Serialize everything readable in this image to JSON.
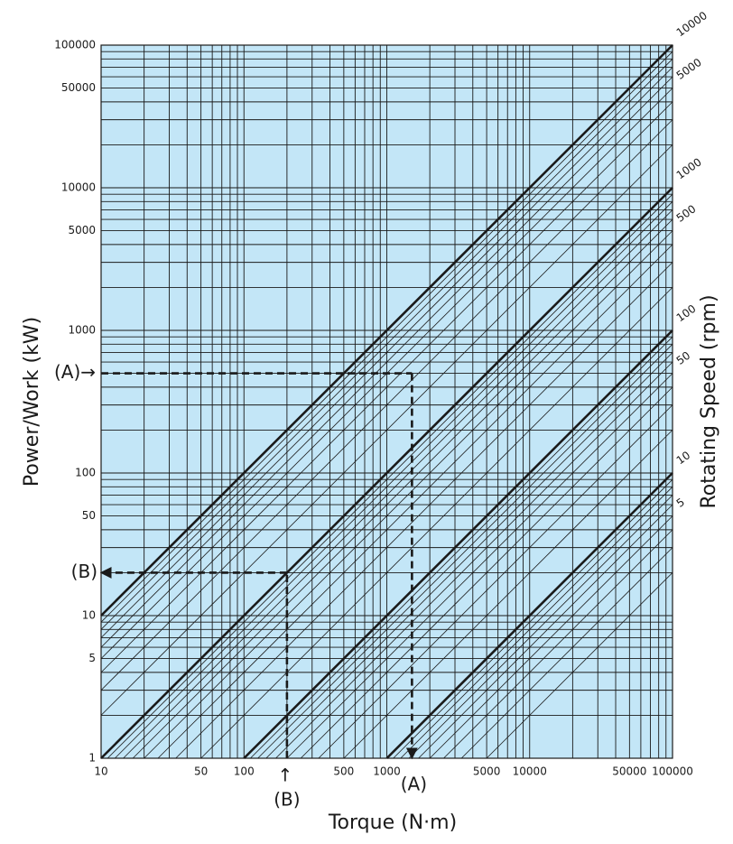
{
  "chart_data": {
    "type": "nomograph",
    "x_label": "Torque (N·m)",
    "y_label": "Power/Work (kW)",
    "y2_label": "Rotating Speed (rpm)",
    "log_x": true,
    "log_y": true,
    "xlim": [
      10,
      100000
    ],
    "ylim": [
      1,
      100000
    ],
    "xticks": [
      10,
      50,
      100,
      500,
      1000,
      5000,
      10000,
      50000,
      100000
    ],
    "yticks": [
      1,
      5,
      10,
      50,
      100,
      1000,
      5000,
      10000,
      50000,
      100000
    ],
    "xgrid": [
      10,
      20,
      30,
      40,
      50,
      60,
      70,
      80,
      90,
      100,
      200,
      300,
      400,
      500,
      600,
      700,
      800,
      900,
      1000,
      2000,
      3000,
      4000,
      5000,
      6000,
      7000,
      8000,
      9000,
      10000,
      20000,
      30000,
      40000,
      50000,
      60000,
      70000,
      80000,
      90000,
      100000
    ],
    "ygrid": [
      1,
      2,
      3,
      4,
      5,
      6,
      7,
      8,
      9,
      10,
      20,
      30,
      40,
      50,
      60,
      70,
      80,
      90,
      100,
      200,
      300,
      400,
      500,
      600,
      700,
      800,
      900,
      1000,
      2000,
      3000,
      4000,
      5000,
      6000,
      7000,
      8000,
      9000,
      10000,
      20000,
      30000,
      40000,
      50000,
      60000,
      70000,
      80000,
      90000,
      100000
    ],
    "background": "#c3e6f7",
    "color": "#1a1a1a",
    "series": [
      {
        "name": null,
        "x": [
          5000,
          100000
        ],
        "values": [
          1,
          20
        ]
      },
      {
        "name": null,
        "x": [
          3333,
          100000
        ],
        "values": [
          1,
          30
        ]
      },
      {
        "name": null,
        "x": [
          2500,
          100000
        ],
        "values": [
          1,
          40
        ]
      },
      {
        "name": "5",
        "x": [
          2000,
          100000
        ],
        "values": [
          1,
          50
        ]
      },
      {
        "name": null,
        "x": [
          1667,
          100000
        ],
        "values": [
          1,
          60
        ]
      },
      {
        "name": null,
        "x": [
          1429,
          100000
        ],
        "values": [
          1,
          70
        ]
      },
      {
        "name": null,
        "x": [
          1250,
          100000
        ],
        "values": [
          1,
          80
        ]
      },
      {
        "name": null,
        "x": [
          1111,
          100000
        ],
        "values": [
          1,
          90
        ]
      },
      {
        "name": "10",
        "x": [
          1000,
          100000
        ],
        "values": [
          1,
          100
        ],
        "bold": true
      },
      {
        "name": null,
        "x": [
          500,
          100000
        ],
        "values": [
          1,
          200
        ]
      },
      {
        "name": null,
        "x": [
          333,
          100000
        ],
        "values": [
          1,
          300
        ]
      },
      {
        "name": null,
        "x": [
          250,
          100000
        ],
        "values": [
          1,
          400
        ]
      },
      {
        "name": "50",
        "x": [
          200,
          100000
        ],
        "values": [
          1,
          500
        ]
      },
      {
        "name": null,
        "x": [
          167,
          100000
        ],
        "values": [
          1,
          600
        ]
      },
      {
        "name": null,
        "x": [
          143,
          100000
        ],
        "values": [
          1,
          700
        ]
      },
      {
        "name": null,
        "x": [
          125,
          100000
        ],
        "values": [
          1,
          800
        ]
      },
      {
        "name": null,
        "x": [
          111,
          100000
        ],
        "values": [
          1,
          900
        ]
      },
      {
        "name": "100",
        "x": [
          100,
          100000
        ],
        "values": [
          1,
          1000
        ],
        "bold": true
      },
      {
        "name": null,
        "x": [
          50,
          100000
        ],
        "values": [
          1,
          2000
        ]
      },
      {
        "name": null,
        "x": [
          33.3,
          100000
        ],
        "values": [
          1,
          3000
        ]
      },
      {
        "name": null,
        "x": [
          25,
          100000
        ],
        "values": [
          1,
          4000
        ]
      },
      {
        "name": "500",
        "x": [
          20,
          100000
        ],
        "values": [
          1,
          5000
        ]
      },
      {
        "name": null,
        "x": [
          16.7,
          100000
        ],
        "values": [
          1,
          6000
        ]
      },
      {
        "name": null,
        "x": [
          14.3,
          100000
        ],
        "values": [
          1,
          7000
        ]
      },
      {
        "name": null,
        "x": [
          12.5,
          100000
        ],
        "values": [
          1,
          8000
        ]
      },
      {
        "name": null,
        "x": [
          11.1,
          100000
        ],
        "values": [
          1,
          9000
        ]
      },
      {
        "name": "1000",
        "x": [
          10,
          100000
        ],
        "values": [
          1,
          10000
        ],
        "bold": true
      },
      {
        "name": null,
        "x": [
          10,
          100000
        ],
        "values": [
          2,
          20000
        ]
      },
      {
        "name": null,
        "x": [
          10,
          100000
        ],
        "values": [
          3,
          30000
        ]
      },
      {
        "name": null,
        "x": [
          10,
          100000
        ],
        "values": [
          4,
          40000
        ]
      },
      {
        "name": "5000",
        "x": [
          10,
          100000
        ],
        "values": [
          5,
          50000
        ]
      },
      {
        "name": null,
        "x": [
          10,
          100000
        ],
        "values": [
          6,
          60000
        ]
      },
      {
        "name": null,
        "x": [
          10,
          100000
        ],
        "values": [
          7,
          70000
        ]
      },
      {
        "name": null,
        "x": [
          10,
          100000
        ],
        "values": [
          8,
          80000
        ]
      },
      {
        "name": null,
        "x": [
          10,
          100000
        ],
        "values": [
          9,
          90000
        ]
      },
      {
        "name": "10000",
        "x": [
          10,
          100000
        ],
        "values": [
          10,
          100000
        ],
        "bold": true
      }
    ],
    "guides": [
      {
        "power": 500,
        "torque": 1500,
        "left_label": "(A)→",
        "bottom_label": "(A)",
        "arrow": "down"
      },
      {
        "power": 20,
        "torque": 200,
        "left_label": "(B)",
        "bottom_arrow": "↑",
        "bottom_label": "(B)",
        "arrow": "left"
      }
    ]
  }
}
